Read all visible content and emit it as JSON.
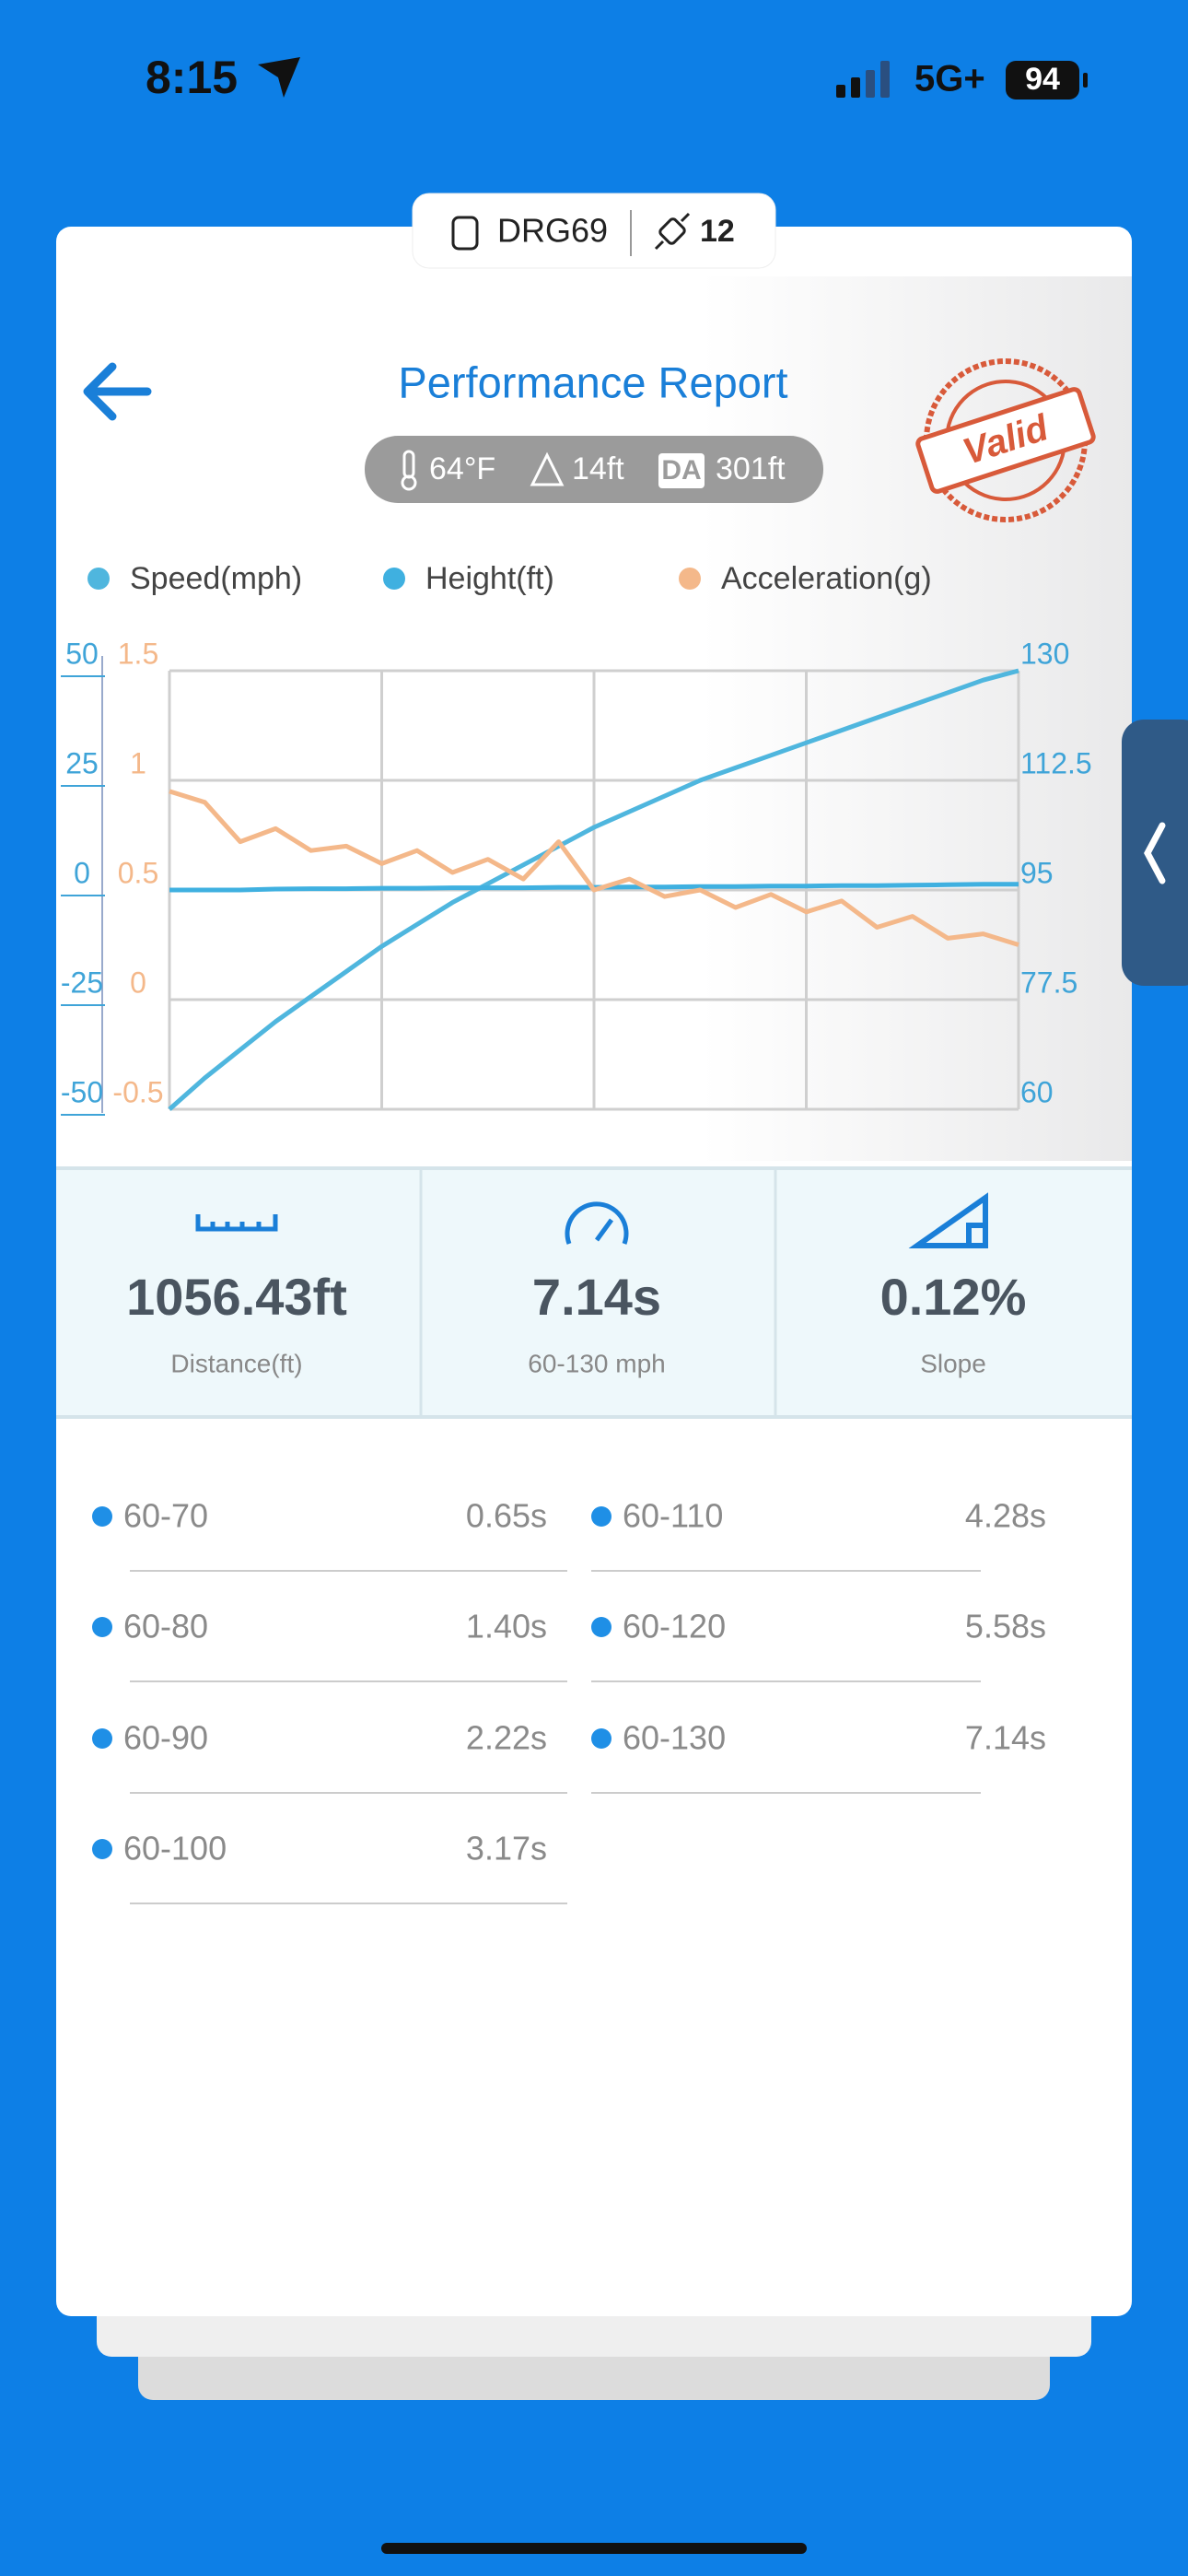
{
  "status_bar": {
    "time": "8:15",
    "network": "5G+",
    "battery": "94"
  },
  "device": {
    "name": "DRG69",
    "satellites": "12"
  },
  "header": {
    "title": "Performance Report",
    "stamp": "Valid"
  },
  "conditions": {
    "temperature": "64°F",
    "altitude": "14ft",
    "da_badge": "DA",
    "density_altitude": "301ft"
  },
  "chart_data": {
    "type": "line",
    "series": [
      {
        "name": "Speed(mph)",
        "color": "#4fb6de",
        "axis": "y2",
        "values": [
          60,
          65,
          69.5,
          74,
          78,
          82,
          86,
          89.5,
          93,
          96,
          99,
          102,
          105,
          107.5,
          110,
          112.5,
          114.5,
          116.5,
          118.5,
          120.5,
          122.5,
          124.5,
          126.5,
          128.5,
          130
        ]
      },
      {
        "name": "Height(ft)",
        "color": "#3fb0e0",
        "values": [
          0,
          0,
          0,
          0.2,
          0.3,
          0.3,
          0.4,
          0.4,
          0.5,
          0.5,
          0.5,
          0.6,
          0.6,
          0.7,
          0.7,
          0.8,
          0.8,
          0.9,
          0.9,
          1,
          1,
          1.1,
          1.2,
          1.3,
          1.3
        ]
      },
      {
        "name": "Acceleration(g)",
        "color": "#f4b88a",
        "axis": "y3",
        "values": [
          0.95,
          0.9,
          0.72,
          0.78,
          0.68,
          0.7,
          0.62,
          0.68,
          0.58,
          0.64,
          0.55,
          0.72,
          0.5,
          0.55,
          0.47,
          0.5,
          0.42,
          0.48,
          0.4,
          0.45,
          0.33,
          0.38,
          0.28,
          0.3,
          0.25
        ]
      }
    ],
    "ylim": [
      -50,
      50
    ],
    "yticks": [
      50,
      25,
      0,
      -25,
      -50
    ],
    "y2lim": [
      60,
      130
    ],
    "y2ticks": [
      130,
      112.5,
      95,
      77.5,
      60
    ],
    "y3lim": [
      -0.5,
      1.5
    ],
    "y3ticks": [
      1.5,
      1,
      0.5,
      0,
      -0.5
    ],
    "grid": true
  },
  "stats": [
    {
      "value": "1056.43ft",
      "label": "Distance(ft)"
    },
    {
      "value": "7.14s",
      "label": "60-130 mph"
    },
    {
      "value": "0.12%",
      "label": "Slope"
    }
  ],
  "splits": [
    [
      "60-70",
      "0.65s"
    ],
    [
      "60-80",
      "1.40s"
    ],
    [
      "60-90",
      "2.22s"
    ],
    [
      "60-100",
      "3.17s"
    ],
    [
      "60-110",
      "4.28s"
    ],
    [
      "60-120",
      "5.58s"
    ],
    [
      "60-130",
      "7.14s"
    ]
  ]
}
